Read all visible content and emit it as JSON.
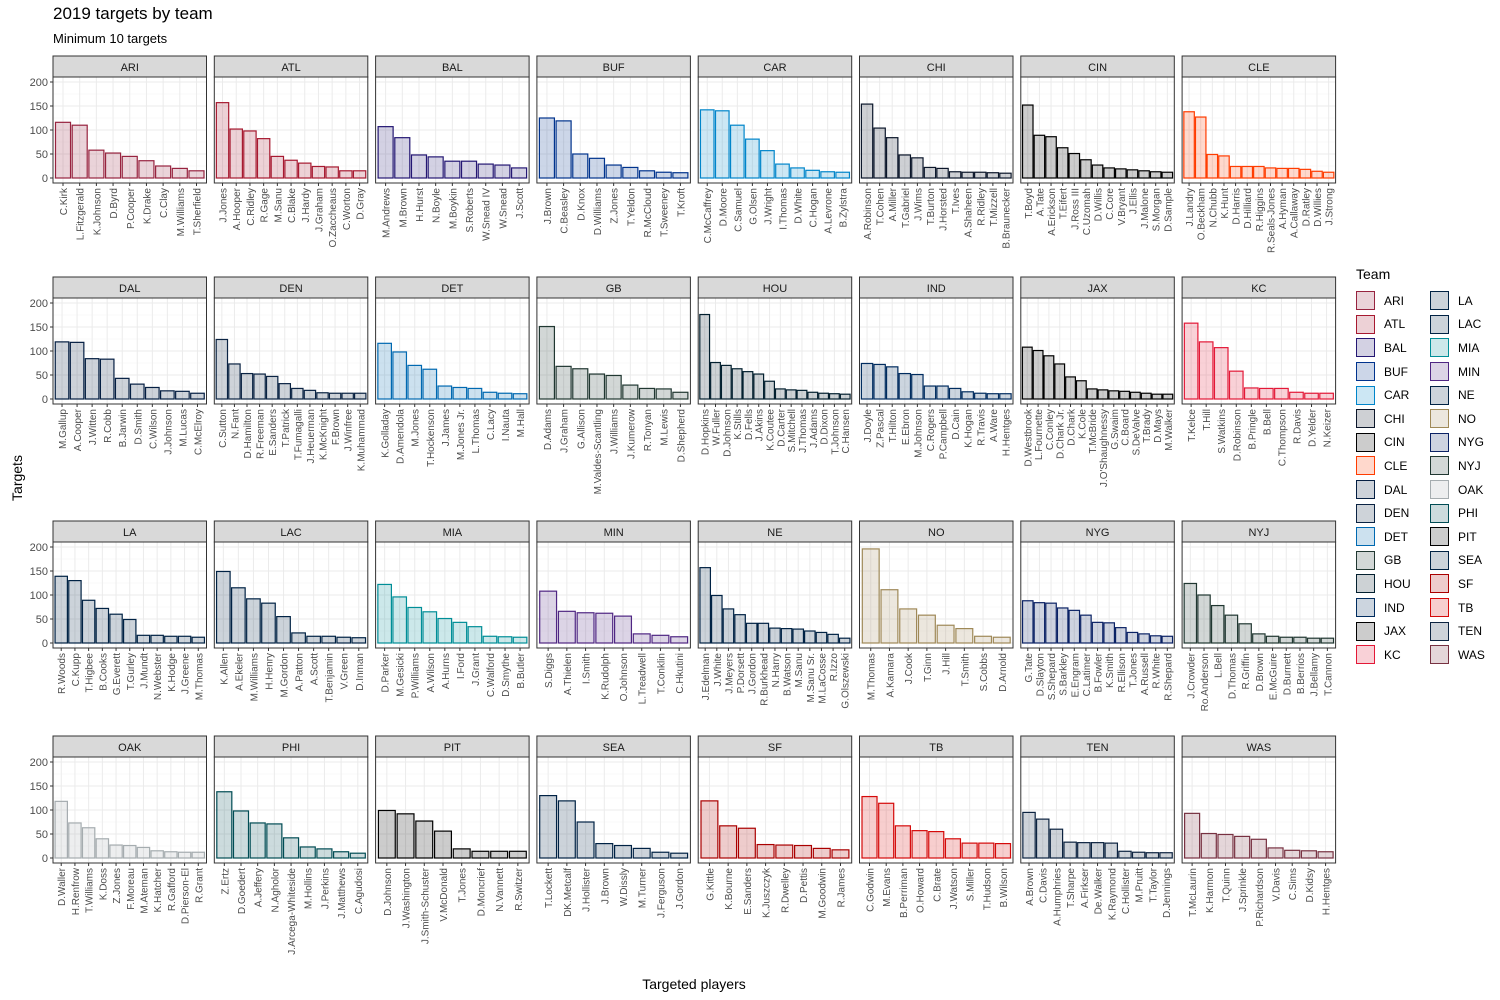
{
  "title": "2019 targets by team",
  "subtitle": "Minimum 10 targets",
  "legend_title": "Team",
  "chart_data": {
    "type": "bar",
    "title": "2019 targets by team",
    "subtitle": "Minimum 10 targets",
    "xlabel": "Targeted players",
    "ylabel": "Targets",
    "ylim": [
      0,
      200
    ],
    "yticks": [
      0,
      50,
      100,
      150,
      200
    ],
    "grid": true,
    "legend": "right",
    "teams": [
      {
        "team": "ARI",
        "color": "#97233F",
        "players": [
          "C.Kirk",
          "L.Fitzgerald",
          "K.Johnson",
          "D.Byrd",
          "P.Cooper",
          "K.Drake",
          "C.Clay",
          "M.Williams",
          "T.Sherfield"
        ],
        "values": [
          116,
          110,
          58,
          52,
          45,
          36,
          25,
          20,
          15
        ]
      },
      {
        "team": "ATL",
        "color": "#A71930",
        "players": [
          "J.Jones",
          "A.Hooper",
          "C.Ridley",
          "R.Gage",
          "M.Sanu",
          "C.Blake",
          "J.Hardy",
          "J.Graham",
          "O.Zaccheaus",
          "C.Worton",
          "D.Gray"
        ],
        "values": [
          157,
          102,
          98,
          82,
          45,
          37,
          31,
          24,
          23,
          15,
          15
        ]
      },
      {
        "team": "BAL",
        "color": "#241773",
        "players": [
          "M.Andrews",
          "M.Brown",
          "H.Hurst",
          "N.Boyle",
          "M.Boykin",
          "S.Roberts",
          "W.Snead IV",
          "W.Snead",
          "J.Scott"
        ],
        "values": [
          107,
          84,
          48,
          44,
          35,
          35,
          29,
          27,
          21
        ]
      },
      {
        "team": "BUF",
        "color": "#00338D",
        "players": [
          "J.Brown",
          "C.Beasley",
          "D.Knox",
          "D.Williams",
          "Z.Jones",
          "T.Yeldon",
          "R.McCloud",
          "T.Sweeney",
          "T.Kroft"
        ],
        "values": [
          125,
          119,
          50,
          41,
          27,
          22,
          15,
          12,
          11
        ]
      },
      {
        "team": "CAR",
        "color": "#0085CA",
        "players": [
          "C.McCaffrey",
          "D.Moore",
          "C.Samuel",
          "G.Olsen",
          "J.Wright",
          "I.Thomas",
          "D.White",
          "C.Hogan",
          "A.Levrone",
          "B.Zylstra"
        ],
        "values": [
          142,
          140,
          110,
          81,
          57,
          29,
          21,
          16,
          13,
          12
        ]
      },
      {
        "team": "CHI",
        "color": "#0B162A",
        "players": [
          "A.Robinson",
          "T.Cohen",
          "A.Miller",
          "T.Gabriel",
          "J.Wims",
          "T.Burton",
          "J.Horsted",
          "T.Ives",
          "A.Shaheen",
          "R.Ridley",
          "T.Mizzell",
          "B.Braunecker"
        ],
        "values": [
          154,
          104,
          84,
          48,
          42,
          22,
          20,
          13,
          12,
          12,
          11,
          10
        ]
      },
      {
        "team": "CIN",
        "color": "#000000",
        "players": [
          "T.Boyd",
          "A.Tate",
          "A.Erickson",
          "T.Eifert",
          "J.Ross III",
          "C.Uzomah",
          "D.Willis",
          "C.Core",
          "V.Bryant",
          "J.Ellis",
          "J.Malone",
          "S.Morgan",
          "D.Sample"
        ],
        "values": [
          152,
          89,
          86,
          63,
          51,
          38,
          27,
          21,
          19,
          17,
          15,
          13,
          12
        ]
      },
      {
        "team": "CLE",
        "color": "#FF3C00",
        "players": [
          "J.Landry",
          "O.Beckham",
          "N.Chubb",
          "K.Hunt",
          "D.Harris",
          "D.Hilliard",
          "R.Higgins",
          "R.Seals-Jones",
          "A.Hyman",
          "A.Callaway",
          "D.Ratley",
          "D.Willies",
          "J.Strong"
        ],
        "values": [
          138,
          127,
          49,
          46,
          24,
          24,
          24,
          21,
          20,
          20,
          18,
          14,
          12
        ]
      },
      {
        "team": "DAL",
        "color": "#041E42",
        "players": [
          "M.Gallup",
          "A.Cooper",
          "J.Witten",
          "R.Cobb",
          "B.Jarwin",
          "D.Smith",
          "C.Wilson",
          "J.Johnson",
          "M.Lucas",
          "C.McElroy"
        ],
        "values": [
          119,
          118,
          84,
          83,
          43,
          31,
          24,
          17,
          16,
          12
        ]
      },
      {
        "team": "DEN",
        "color": "#0A2343",
        "players": [
          "C.Sutton",
          "N.Fant",
          "D.Hamilton",
          "R.Freeman",
          "E.Sanders",
          "T.Patrick",
          "T.Fumagalli",
          "J.Heuerman",
          "K.McKnight",
          "F.Brown",
          "J.Winfree",
          "K.Muhammad"
        ],
        "values": [
          124,
          73,
          53,
          52,
          47,
          32,
          22,
          18,
          13,
          12,
          12,
          12
        ]
      },
      {
        "team": "DET",
        "color": "#0069B1",
        "players": [
          "K.Golladay",
          "D.Amendola",
          "M.Jones",
          "T.Hockenson",
          "J.James",
          "M.Jones Jr.",
          "L.Thomas",
          "C.Lacy",
          "I.Nauta",
          "M.Hall"
        ],
        "values": [
          116,
          98,
          70,
          62,
          27,
          24,
          22,
          14,
          12,
          11
        ]
      },
      {
        "team": "GB",
        "color": "#203731",
        "players": [
          "D.Adams",
          "J.Graham",
          "G.Allison",
          "M.Valdes-Scantling",
          "J.Williams",
          "J.Kumerow",
          "R.Tonyan",
          "M.Lewis",
          "D.Shepherd"
        ],
        "values": [
          151,
          68,
          63,
          52,
          49,
          29,
          22,
          21,
          14
        ]
      },
      {
        "team": "HOU",
        "color": "#03202F",
        "players": [
          "D.Hopkins",
          "W.Fuller",
          "D.Johnson",
          "K.Stills",
          "D.Fells",
          "J.Akins",
          "K.Coutee",
          "D.Carter",
          "S.Mitchell",
          "J.Thomas",
          "J.Adams",
          "D.Dixon",
          "T.Johnson",
          "C.Hansen"
        ],
        "values": [
          176,
          76,
          70,
          63,
          57,
          52,
          37,
          21,
          19,
          18,
          14,
          12,
          11,
          10
        ]
      },
      {
        "team": "IND",
        "color": "#002C5F",
        "players": [
          "J.Doyle",
          "Z.Pascal",
          "T.Hilton",
          "E.Ebron",
          "M.Johnson",
          "C.Rogers",
          "P.Campbell",
          "D.Cain",
          "K.Hogan",
          "R.Travis",
          "A.Ware",
          "H.Hentges"
        ],
        "values": [
          74,
          72,
          67,
          53,
          51,
          27,
          27,
          22,
          15,
          12,
          11,
          11
        ]
      },
      {
        "team": "JAX",
        "color": "#000000",
        "players": [
          "D.Westbrook",
          "L.Fournette",
          "C.Conley",
          "D.Chark Jr.",
          "D.Chark",
          "K.Cole",
          "T.McBride",
          "J.O'Shaughnessy",
          "G.Swaim",
          "C.Board",
          "S.DeValve",
          "T.Brady",
          "D.Mays",
          "M.Walker"
        ],
        "values": [
          108,
          101,
          90,
          73,
          46,
          38,
          21,
          19,
          17,
          16,
          14,
          12,
          10,
          10
        ]
      },
      {
        "team": "KC",
        "color": "#E31837",
        "players": [
          "T.Kelce",
          "T.Hill",
          "S.Watkins",
          "D.Robinson",
          "B.Pringle",
          "B.Bell",
          "C.Thompson",
          "R.Davis",
          "D.Yelder",
          "N.Keizer"
        ],
        "values": [
          158,
          119,
          107,
          58,
          23,
          22,
          22,
          14,
          12,
          12
        ]
      },
      {
        "team": "LA",
        "color": "#002244",
        "players": [
          "R.Woods",
          "C.Kupp",
          "T.Higbee",
          "B.Cooks",
          "G.Everett",
          "T.Gurley",
          "J.Mundt",
          "N.Webster",
          "K.Hodge",
          "J.Greene",
          "M.Thomas"
        ],
        "values": [
          139,
          130,
          89,
          72,
          60,
          49,
          16,
          16,
          14,
          14,
          12
        ]
      },
      {
        "team": "LAC",
        "color": "#002244",
        "players": [
          "K.Allen",
          "A.Ekeler",
          "M.Williams",
          "H.Henry",
          "M.Gordon",
          "A.Patton",
          "A.Scott",
          "T.Benjamin",
          "V.Green",
          "D.Inman"
        ],
        "values": [
          149,
          115,
          92,
          83,
          55,
          21,
          14,
          14,
          12,
          11
        ]
      },
      {
        "team": "MIA",
        "color": "#008E97",
        "players": [
          "D.Parker",
          "M.Gesicki",
          "P.Williams",
          "A.Wilson",
          "A.Hurns",
          "I.Ford",
          "J.Grant",
          "C.Walford",
          "D.Smythe",
          "B.Butler"
        ],
        "values": [
          122,
          96,
          74,
          65,
          51,
          43,
          34,
          14,
          13,
          12
        ]
      },
      {
        "team": "MIN",
        "color": "#4F2683",
        "players": [
          "S.Diggs",
          "A.Thielen",
          "I.Smith",
          "K.Rudolph",
          "O.Johnson",
          "L.Treadwell",
          "T.Conklin",
          "C.Hkutini"
        ],
        "values": [
          108,
          66,
          63,
          62,
          56,
          19,
          16,
          13
        ]
      },
      {
        "team": "NE",
        "color": "#002244",
        "players": [
          "J.Edelman",
          "J.White",
          "J.Meyers",
          "P.Dorsett",
          "J.Gordon",
          "R.Burkhead",
          "N.Harry",
          "B.Watson",
          "M.Sanu",
          "M.Sanu Sr.",
          "M.LaCosse",
          "R.Izzo",
          "G.Olszewski"
        ],
        "values": [
          157,
          99,
          71,
          59,
          41,
          41,
          31,
          30,
          29,
          25,
          22,
          18,
          10
        ]
      },
      {
        "team": "NO",
        "color": "#9F8958",
        "players": [
          "M.Thomas",
          "A.Kamara",
          "J.Cook",
          "T.Ginn",
          "J.Hill",
          "T.Smith",
          "S.Cobbs",
          "D.Arnold"
        ],
        "values": [
          196,
          111,
          71,
          58,
          37,
          30,
          14,
          12
        ]
      },
      {
        "team": "NYG",
        "color": "#0B2265",
        "players": [
          "G.Tate",
          "D.Slayton",
          "S.Shepard",
          "S.Barkley",
          "E.Engram",
          "C.Latimer",
          "B.Fowler",
          "K.Smith",
          "R.Ellison",
          "T.Jones",
          "A.Russell",
          "R.White",
          "R.Shepard"
        ],
        "values": [
          88,
          84,
          83,
          73,
          68,
          58,
          43,
          42,
          32,
          22,
          19,
          15,
          14
        ]
      },
      {
        "team": "NYJ",
        "color": "#203731",
        "players": [
          "J.Crowder",
          "Ro.Anderson",
          "L.Bell",
          "D.Thomas",
          "R.Griffin",
          "D.Brown",
          "E.McGuire",
          "D.Burnett",
          "B.Berrios",
          "J.Bellamy",
          "T.Cannon"
        ],
        "values": [
          124,
          100,
          78,
          58,
          40,
          19,
          14,
          12,
          12,
          10,
          10
        ]
      },
      {
        "team": "OAK",
        "color": "#A5ACAF",
        "players": [
          "D.Waller",
          "H.Renfrow",
          "T.Williams",
          "K.Doss",
          "Z.Jones",
          "F.Moreau",
          "M.Ateman",
          "K.Hatcher",
          "R.Gafford",
          "D.Pierson-El",
          "R.Grant"
        ],
        "values": [
          118,
          73,
          63,
          40,
          27,
          26,
          22,
          15,
          13,
          12,
          12
        ]
      },
      {
        "team": "PHI",
        "color": "#004C54",
        "players": [
          "Z.Ertz",
          "D.Goedert",
          "A.Jeffery",
          "N.Agholor",
          "J.Arcega-Whiteside",
          "M.Hollins",
          "J.Perkins",
          "J.Matthews",
          "C.Agudosi"
        ],
        "values": [
          138,
          98,
          73,
          71,
          42,
          23,
          19,
          13,
          10
        ]
      },
      {
        "team": "PIT",
        "color": "#000000",
        "players": [
          "D.Johnson",
          "J.Washington",
          "J.Smith-Schuster",
          "V.McDonald",
          "T.Jones",
          "D.Moncrief",
          "N.Vannett",
          "R.Switzer"
        ],
        "values": [
          99,
          92,
          77,
          56,
          19,
          14,
          14,
          14
        ]
      },
      {
        "team": "SEA",
        "color": "#002244",
        "players": [
          "T.Lockett",
          "DK.Metcalf",
          "J.Hollister",
          "J.Brown",
          "W.Dissly",
          "M.Turner",
          "J.Ferguson",
          "J.Gordon"
        ],
        "values": [
          130,
          119,
          75,
          30,
          26,
          20,
          12,
          10
        ]
      },
      {
        "team": "SF",
        "color": "#AA0000",
        "players": [
          "G.Kittle",
          "K.Bourne",
          "E.Sanders",
          "K.Juszczyk",
          "R.Dwelley",
          "D.Pettis",
          "M.Goodwin",
          "R.James"
        ],
        "values": [
          119,
          67,
          62,
          28,
          27,
          26,
          20,
          17
        ]
      },
      {
        "team": "TB",
        "color": "#D50A0A",
        "players": [
          "C.Godwin",
          "M.Evans",
          "B.Perriman",
          "O.Howard",
          "C.Brate",
          "J.Watson",
          "S.Miller",
          "T.Hudson",
          "B.Wilson"
        ],
        "values": [
          128,
          114,
          67,
          57,
          55,
          40,
          31,
          31,
          30
        ]
      },
      {
        "team": "TEN",
        "color": "#0C2340",
        "players": [
          "A.Brown",
          "C.Davis",
          "A.Humphries",
          "T.Sharpe",
          "A.Firkser",
          "De.Walker",
          "K.Raymond",
          "C.Hollister",
          "M.Pruitt",
          "T.Taylor",
          "D.Jennings"
        ],
        "values": [
          95,
          81,
          60,
          33,
          32,
          32,
          31,
          14,
          12,
          11,
          11
        ]
      },
      {
        "team": "WAS",
        "color": "#773141",
        "players": [
          "T.McLaurin",
          "K.Harmon",
          "T.Quinn",
          "J.Sprinkle",
          "P.Richardson",
          "V.Davis",
          "C.Sims",
          "D.Kidsy",
          "H.Hentges"
        ],
        "values": [
          93,
          51,
          49,
          45,
          39,
          21,
          16,
          15,
          13
        ]
      }
    ]
  }
}
